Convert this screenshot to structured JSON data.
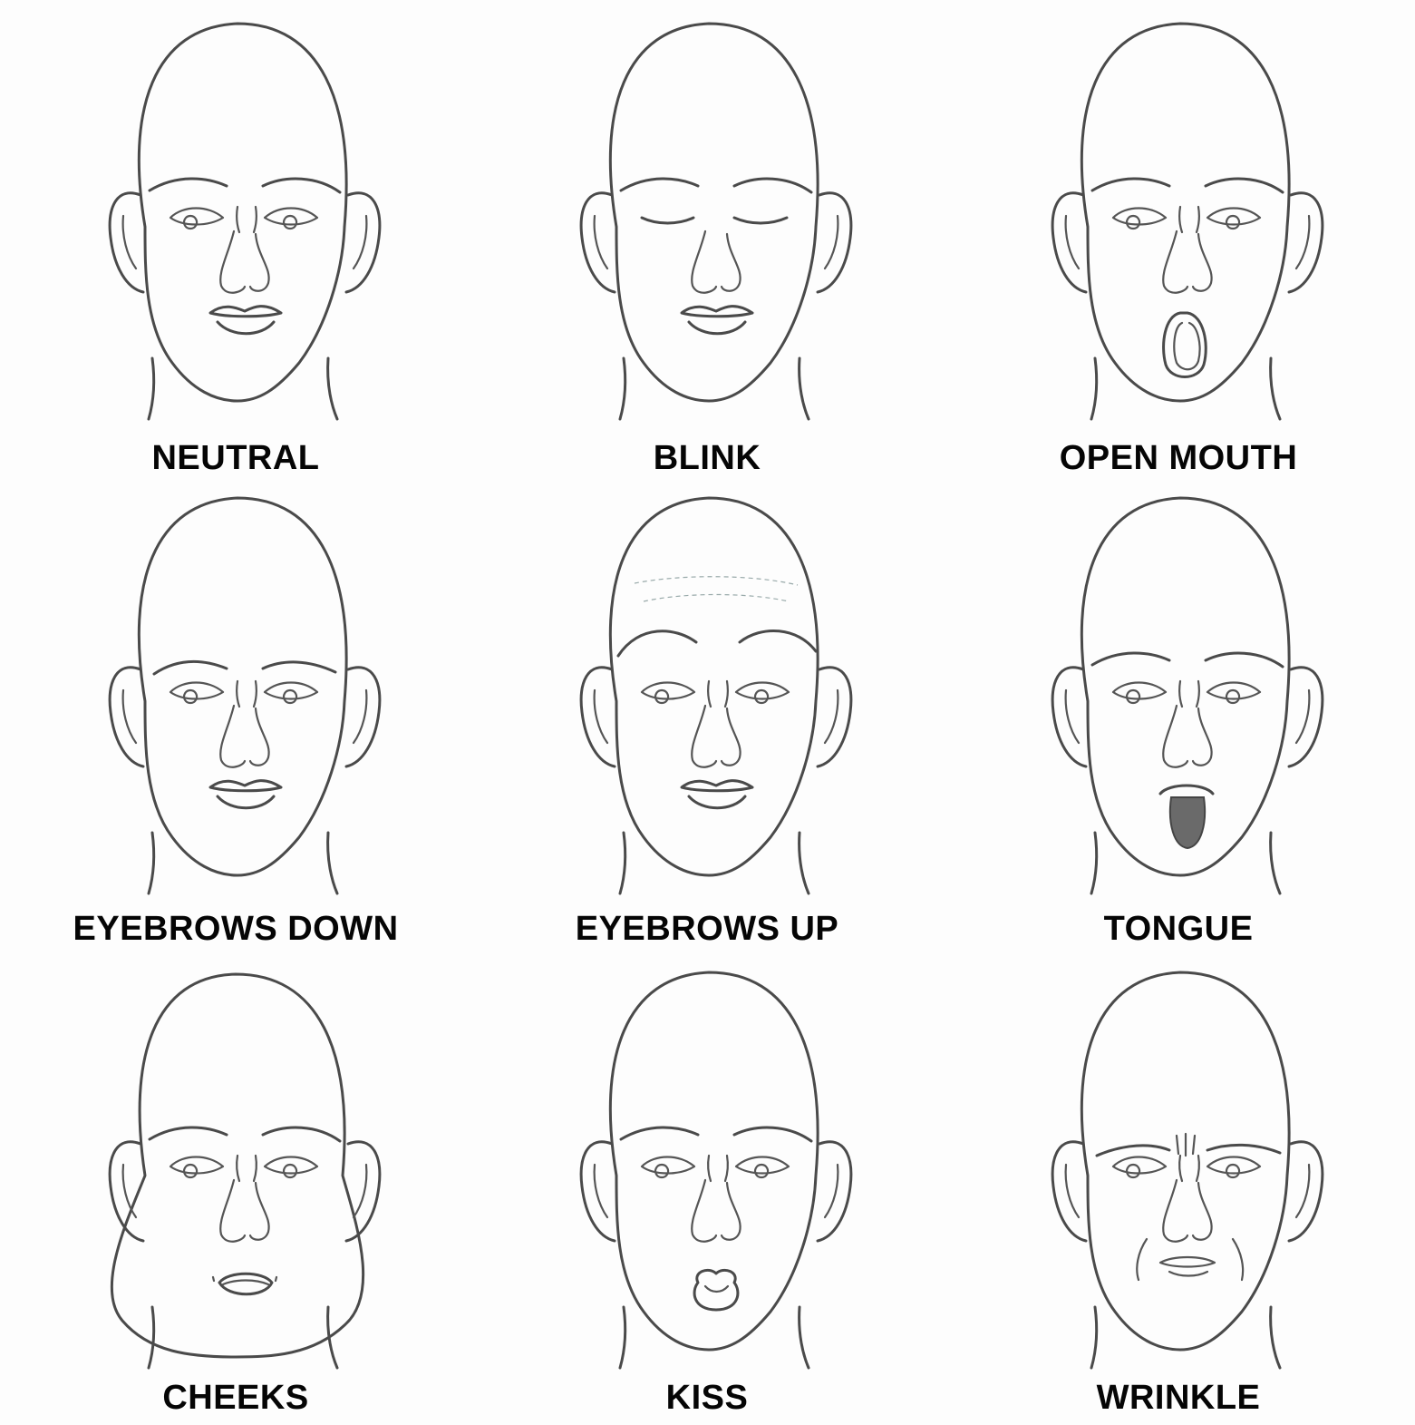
{
  "panels": [
    {
      "label": "NEUTRAL",
      "expression": "neutral"
    },
    {
      "label": "BLINK",
      "expression": "blink"
    },
    {
      "label": "OPEN MOUTH",
      "expression": "open-mouth"
    },
    {
      "label": "EYEBROWS DOWN",
      "expression": "eyebrows-down"
    },
    {
      "label": "EYEBROWS UP",
      "expression": "eyebrows-up"
    },
    {
      "label": "TONGUE",
      "expression": "tongue"
    },
    {
      "label": "CHEEKS",
      "expression": "cheeks"
    },
    {
      "label": "KISS",
      "expression": "kiss"
    },
    {
      "label": "WRINKLE",
      "expression": "wrinkle"
    }
  ]
}
